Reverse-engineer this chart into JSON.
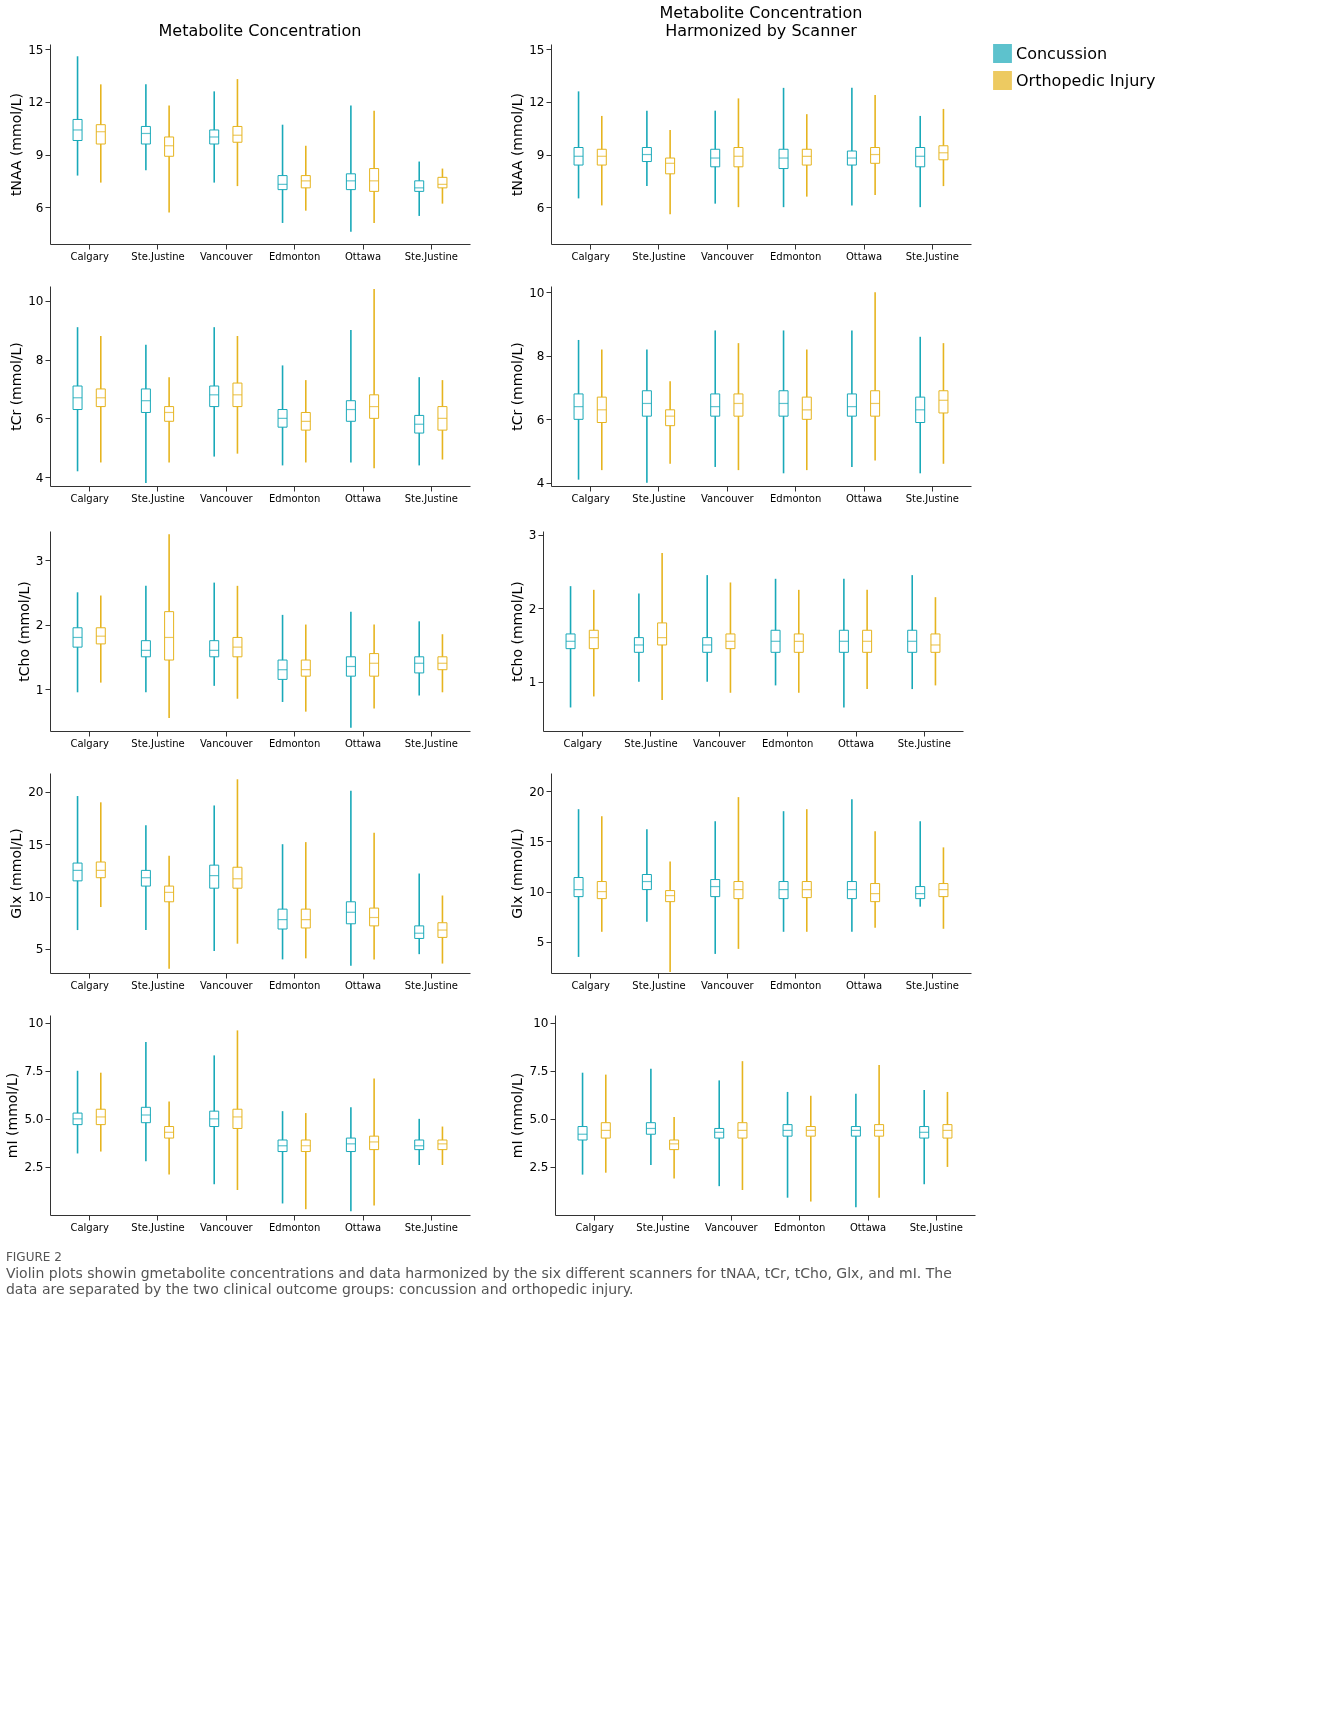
{
  "chart_data": [
    {
      "type": "box",
      "title": "Metabolite Concentration",
      "ylabel": "tNAA (mmol/L)",
      "categories": [
        "Calgary",
        "Ste.Justine",
        "Vancouver",
        "Edmonton",
        "Ottawa",
        "Ste.Justine"
      ],
      "ylim": [
        3.9,
        15.3
      ],
      "yticks": [
        6,
        9,
        12,
        15
      ],
      "legend": "right",
      "series": [
        {
          "name": "Concussion",
          "color": "#19a9b9",
          "boxes": [
            {
              "low": 7.8,
              "q1": 9.8,
              "median": 10.4,
              "q3": 11.0,
              "high": 14.6
            },
            {
              "low": 8.1,
              "q1": 9.6,
              "median": 10.2,
              "q3": 10.6,
              "high": 13.0
            },
            {
              "low": 7.4,
              "q1": 9.6,
              "median": 10.0,
              "q3": 10.4,
              "high": 12.6
            },
            {
              "low": 5.1,
              "q1": 7.0,
              "median": 7.3,
              "q3": 7.8,
              "high": 10.7
            },
            {
              "low": 4.6,
              "q1": 7.0,
              "median": 7.5,
              "q3": 7.9,
              "high": 11.8
            },
            {
              "low": 5.5,
              "q1": 6.9,
              "median": 7.1,
              "q3": 7.5,
              "high": 8.6
            }
          ]
        },
        {
          "name": "Orthopedic Injury",
          "color": "#e6b41f",
          "boxes": [
            {
              "low": 7.4,
              "q1": 9.6,
              "median": 10.3,
              "q3": 10.7,
              "high": 13.0
            },
            {
              "low": 5.7,
              "q1": 8.9,
              "median": 9.5,
              "q3": 10.0,
              "high": 11.8
            },
            {
              "low": 7.2,
              "q1": 9.7,
              "median": 10.1,
              "q3": 10.6,
              "high": 13.3
            },
            {
              "low": 5.8,
              "q1": 7.1,
              "median": 7.5,
              "q3": 7.8,
              "high": 9.5
            },
            {
              "low": 5.1,
              "q1": 6.9,
              "median": 7.5,
              "q3": 8.2,
              "high": 11.5
            },
            {
              "low": 6.2,
              "q1": 7.1,
              "median": 7.3,
              "q3": 7.7,
              "high": 8.2
            }
          ]
        }
      ]
    },
    {
      "type": "box",
      "title": "Metabolite Concentration\nHarmonized by Scanner",
      "ylabel": "tNAA (mmol/L)",
      "categories": [
        "Calgary",
        "Ste.Justine",
        "Vancouver",
        "Edmonton",
        "Ottawa",
        "Ste.Justine"
      ],
      "ylim": [
        3.9,
        15.3
      ],
      "yticks": [
        6,
        9,
        12,
        15
      ],
      "legend": "right",
      "series": [
        {
          "name": "Concussion",
          "color": "#19a9b9",
          "boxes": [
            {
              "low": 6.5,
              "q1": 8.4,
              "median": 8.9,
              "q3": 9.4,
              "high": 12.6
            },
            {
              "low": 7.2,
              "q1": 8.6,
              "median": 9.0,
              "q3": 9.4,
              "high": 11.5
            },
            {
              "low": 6.2,
              "q1": 8.3,
              "median": 8.8,
              "q3": 9.3,
              "high": 11.5
            },
            {
              "low": 6.0,
              "q1": 8.2,
              "median": 8.8,
              "q3": 9.3,
              "high": 12.8
            },
            {
              "low": 6.1,
              "q1": 8.4,
              "median": 8.8,
              "q3": 9.2,
              "high": 12.8
            },
            {
              "low": 6.0,
              "q1": 8.3,
              "median": 8.9,
              "q3": 9.4,
              "high": 11.2
            }
          ]
        },
        {
          "name": "Orthopedic Injury",
          "color": "#e6b41f",
          "boxes": [
            {
              "low": 6.1,
              "q1": 8.4,
              "median": 8.9,
              "q3": 9.3,
              "high": 11.2
            },
            {
              "low": 5.6,
              "q1": 7.9,
              "median": 8.5,
              "q3": 8.8,
              "high": 10.4
            },
            {
              "low": 6.0,
              "q1": 8.3,
              "median": 8.9,
              "q3": 9.4,
              "high": 12.2
            },
            {
              "low": 6.6,
              "q1": 8.4,
              "median": 8.9,
              "q3": 9.3,
              "high": 11.3
            },
            {
              "low": 6.7,
              "q1": 8.5,
              "median": 9.0,
              "q3": 9.4,
              "high": 12.4
            },
            {
              "low": 7.2,
              "q1": 8.7,
              "median": 9.1,
              "q3": 9.5,
              "high": 11.6
            }
          ]
        }
      ]
    },
    {
      "type": "box",
      "ylabel": "tCr (mmol/L)",
      "categories": [
        "Calgary",
        "Ste.Justine",
        "Vancouver",
        "Edmonton",
        "Ottawa",
        "Ste.Justine"
      ],
      "ylim": [
        3.7,
        10.5
      ],
      "yticks": [
        4,
        6,
        8,
        10
      ],
      "legend": "right",
      "series": [
        {
          "name": "Concussion",
          "color": "#19a9b9",
          "boxes": [
            {
              "low": 4.2,
              "q1": 6.3,
              "median": 6.7,
              "q3": 7.1,
              "high": 9.1
            },
            {
              "low": 3.8,
              "q1": 6.2,
              "median": 6.6,
              "q3": 7.0,
              "high": 8.5
            },
            {
              "low": 4.7,
              "q1": 6.4,
              "median": 6.8,
              "q3": 7.1,
              "high": 9.1
            },
            {
              "low": 4.4,
              "q1": 5.7,
              "median": 6.0,
              "q3": 6.3,
              "high": 7.8
            },
            {
              "low": 4.5,
              "q1": 5.9,
              "median": 6.3,
              "q3": 6.6,
              "high": 9.0
            },
            {
              "low": 4.4,
              "q1": 5.5,
              "median": 5.8,
              "q3": 6.1,
              "high": 7.4
            }
          ]
        },
        {
          "name": "Orthopedic Injury",
          "color": "#e6b41f",
          "boxes": [
            {
              "low": 4.5,
              "q1": 6.4,
              "median": 6.7,
              "q3": 7.0,
              "high": 8.8
            },
            {
              "low": 4.5,
              "q1": 5.9,
              "median": 6.2,
              "q3": 6.4,
              "high": 7.4
            },
            {
              "low": 4.8,
              "q1": 6.4,
              "median": 6.8,
              "q3": 7.2,
              "high": 8.8
            },
            {
              "low": 4.5,
              "q1": 5.6,
              "median": 5.9,
              "q3": 6.2,
              "high": 7.3
            },
            {
              "low": 4.3,
              "q1": 6.0,
              "median": 6.4,
              "q3": 6.8,
              "high": 10.4
            },
            {
              "low": 4.6,
              "q1": 5.6,
              "median": 6.0,
              "q3": 6.4,
              "high": 7.3
            }
          ]
        }
      ]
    },
    {
      "type": "box",
      "ylabel": "tCr (mmol/L)",
      "categories": [
        "Calgary",
        "Ste.Justine",
        "Vancouver",
        "Edmonton",
        "Ottawa",
        "Ste.Justine"
      ],
      "ylim": [
        3.9,
        10.2
      ],
      "yticks": [
        4,
        6,
        8,
        10
      ],
      "legend": "right",
      "series": [
        {
          "name": "Concussion",
          "color": "#19a9b9",
          "boxes": [
            {
              "low": 4.1,
              "q1": 6.0,
              "median": 6.4,
              "q3": 6.8,
              "high": 8.5
            },
            {
              "low": 4.0,
              "q1": 6.1,
              "median": 6.5,
              "q3": 6.9,
              "high": 8.2
            },
            {
              "low": 4.5,
              "q1": 6.1,
              "median": 6.4,
              "q3": 6.8,
              "high": 8.8
            },
            {
              "low": 4.3,
              "q1": 6.1,
              "median": 6.5,
              "q3": 6.9,
              "high": 8.8
            },
            {
              "low": 4.5,
              "q1": 6.1,
              "median": 6.4,
              "q3": 6.8,
              "high": 8.8
            },
            {
              "low": 4.3,
              "q1": 5.9,
              "median": 6.3,
              "q3": 6.7,
              "high": 8.6
            }
          ]
        },
        {
          "name": "Orthopedic Injury",
          "color": "#e6b41f",
          "boxes": [
            {
              "low": 4.4,
              "q1": 5.9,
              "median": 6.3,
              "q3": 6.7,
              "high": 8.2
            },
            {
              "low": 4.6,
              "q1": 5.8,
              "median": 6.1,
              "q3": 6.3,
              "high": 7.2
            },
            {
              "low": 4.4,
              "q1": 6.1,
              "median": 6.5,
              "q3": 6.8,
              "high": 8.4
            },
            {
              "low": 4.4,
              "q1": 6.0,
              "median": 6.3,
              "q3": 6.7,
              "high": 8.2
            },
            {
              "low": 4.7,
              "q1": 6.1,
              "median": 6.5,
              "q3": 6.9,
              "high": 10.0
            },
            {
              "low": 4.6,
              "q1": 6.2,
              "median": 6.6,
              "q3": 6.9,
              "high": 8.4
            }
          ]
        }
      ]
    },
    {
      "type": "box",
      "ylabel": "tCho (mmol/L)",
      "categories": [
        "Calgary",
        "Ste.Justine",
        "Vancouver",
        "Edmonton",
        "Ottawa",
        "Ste.Justine"
      ],
      "ylim": [
        0.35,
        3.45
      ],
      "yticks": [
        1,
        2,
        3
      ],
      "legend": "right",
      "series": [
        {
          "name": "Concussion",
          "color": "#19a9b9",
          "boxes": [
            {
              "low": 0.95,
              "q1": 1.65,
              "median": 1.8,
              "q3": 1.95,
              "high": 2.5
            },
            {
              "low": 0.95,
              "q1": 1.5,
              "median": 1.6,
              "q3": 1.75,
              "high": 2.6
            },
            {
              "low": 1.05,
              "q1": 1.5,
              "median": 1.6,
              "q3": 1.75,
              "high": 2.65
            },
            {
              "low": 0.8,
              "q1": 1.15,
              "median": 1.3,
              "q3": 1.45,
              "high": 2.15
            },
            {
              "low": 0.4,
              "q1": 1.2,
              "median": 1.35,
              "q3": 1.5,
              "high": 2.2
            },
            {
              "low": 0.9,
              "q1": 1.25,
              "median": 1.4,
              "q3": 1.5,
              "high": 2.05
            }
          ]
        },
        {
          "name": "Orthopedic Injury",
          "color": "#e6b41f",
          "boxes": [
            {
              "low": 1.1,
              "q1": 1.7,
              "median": 1.82,
              "q3": 1.95,
              "high": 2.45
            },
            {
              "low": 0.55,
              "q1": 1.45,
              "median": 1.8,
              "q3": 2.2,
              "high": 3.4
            },
            {
              "low": 0.85,
              "q1": 1.5,
              "median": 1.65,
              "q3": 1.8,
              "high": 2.6
            },
            {
              "low": 0.65,
              "q1": 1.2,
              "median": 1.3,
              "q3": 1.45,
              "high": 2.0
            },
            {
              "low": 0.7,
              "q1": 1.2,
              "median": 1.4,
              "q3": 1.55,
              "high": 2.0
            },
            {
              "low": 0.95,
              "q1": 1.3,
              "median": 1.4,
              "q3": 1.5,
              "high": 1.85
            }
          ]
        }
      ]
    },
    {
      "type": "box",
      "ylabel": "tCho (mmol/L)",
      "categories": [
        "Calgary",
        "Ste.Justine",
        "Vancouver",
        "Edmonton",
        "Ottawa",
        "Ste.Justine"
      ],
      "ylim": [
        0.33,
        3.05
      ],
      "yticks": [
        1,
        2,
        3
      ],
      "legend": "right",
      "series": [
        {
          "name": "Concussion",
          "color": "#19a9b9",
          "boxes": [
            {
              "low": 0.65,
              "q1": 1.45,
              "median": 1.55,
              "q3": 1.65,
              "high": 2.3
            },
            {
              "low": 1.0,
              "q1": 1.4,
              "median": 1.5,
              "q3": 1.6,
              "high": 2.2
            },
            {
              "low": 1.0,
              "q1": 1.4,
              "median": 1.5,
              "q3": 1.6,
              "high": 2.45
            },
            {
              "low": 0.95,
              "q1": 1.4,
              "median": 1.55,
              "q3": 1.7,
              "high": 2.4
            },
            {
              "low": 0.65,
              "q1": 1.4,
              "median": 1.55,
              "q3": 1.7,
              "high": 2.4
            },
            {
              "low": 0.9,
              "q1": 1.4,
              "median": 1.55,
              "q3": 1.7,
              "high": 2.45
            }
          ]
        },
        {
          "name": "Orthopedic Injury",
          "color": "#e6b41f",
          "boxes": [
            {
              "low": 0.8,
              "q1": 1.45,
              "median": 1.6,
              "q3": 1.7,
              "high": 2.25
            },
            {
              "low": 0.75,
              "q1": 1.5,
              "median": 1.6,
              "q3": 1.8,
              "high": 2.75
            },
            {
              "low": 0.85,
              "q1": 1.45,
              "median": 1.55,
              "q3": 1.65,
              "high": 2.35
            },
            {
              "low": 0.85,
              "q1": 1.4,
              "median": 1.55,
              "q3": 1.65,
              "high": 2.25
            },
            {
              "low": 0.9,
              "q1": 1.4,
              "median": 1.55,
              "q3": 1.7,
              "high": 2.25
            },
            {
              "low": 0.95,
              "q1": 1.4,
              "median": 1.5,
              "q3": 1.65,
              "high": 2.15
            }
          ]
        }
      ]
    },
    {
      "type": "box",
      "ylabel": "Glx (mmol/L)",
      "categories": [
        "Calgary",
        "Ste.Justine",
        "Vancouver",
        "Edmonton",
        "Ottawa",
        "Ste.Justine"
      ],
      "ylim": [
        2.7,
        21.8
      ],
      "yticks": [
        5,
        10,
        15,
        20
      ],
      "legend": "right",
      "series": [
        {
          "name": "Concussion",
          "color": "#19a9b9",
          "boxes": [
            {
              "low": 6.8,
              "q1": 11.5,
              "median": 12.5,
              "q3": 13.2,
              "high": 19.6
            },
            {
              "low": 6.8,
              "q1": 11.0,
              "median": 11.8,
              "q3": 12.5,
              "high": 16.8
            },
            {
              "low": 4.8,
              "q1": 10.8,
              "median": 12.0,
              "q3": 13.0,
              "high": 18.7
            },
            {
              "low": 4.0,
              "q1": 6.9,
              "median": 7.8,
              "q3": 8.8,
              "high": 15.0
            },
            {
              "low": 3.4,
              "q1": 7.4,
              "median": 8.5,
              "q3": 9.5,
              "high": 20.1
            },
            {
              "low": 4.5,
              "q1": 6.0,
              "median": 6.5,
              "q3": 7.2,
              "high": 12.2
            }
          ]
        },
        {
          "name": "Orthopedic Injury",
          "color": "#e6b41f",
          "boxes": [
            {
              "low": 9.0,
              "q1": 11.8,
              "median": 12.5,
              "q3": 13.3,
              "high": 19.0
            },
            {
              "low": 3.1,
              "q1": 9.5,
              "median": 10.4,
              "q3": 11.0,
              "high": 13.9
            },
            {
              "low": 5.5,
              "q1": 10.8,
              "median": 11.7,
              "q3": 12.8,
              "high": 21.2
            },
            {
              "low": 4.1,
              "q1": 7.0,
              "median": 7.8,
              "q3": 8.8,
              "high": 15.2
            },
            {
              "low": 4.0,
              "q1": 7.2,
              "median": 8.0,
              "q3": 8.9,
              "high": 16.1
            },
            {
              "low": 3.6,
              "q1": 6.1,
              "median": 6.8,
              "q3": 7.5,
              "high": 10.1
            }
          ]
        }
      ]
    },
    {
      "type": "box",
      "ylabel": "Glx (mmol/L)",
      "categories": [
        "Calgary",
        "Ste.Justine",
        "Vancouver",
        "Edmonton",
        "Ottawa",
        "Ste.Justine"
      ],
      "ylim": [
        1.9,
        21.8
      ],
      "yticks": [
        5,
        10,
        15,
        20
      ],
      "legend": "right",
      "series": [
        {
          "name": "Concussion",
          "color": "#19a9b9",
          "boxes": [
            {
              "low": 3.5,
              "q1": 9.5,
              "median": 10.2,
              "q3": 11.4,
              "high": 18.2
            },
            {
              "low": 7.0,
              "q1": 10.2,
              "median": 11.0,
              "q3": 11.7,
              "high": 16.2
            },
            {
              "low": 3.8,
              "q1": 9.5,
              "median": 10.5,
              "q3": 11.2,
              "high": 17.0
            },
            {
              "low": 6.0,
              "q1": 9.3,
              "median": 10.2,
              "q3": 11.0,
              "high": 18.0
            },
            {
              "low": 6.0,
              "q1": 9.3,
              "median": 10.2,
              "q3": 11.0,
              "high": 19.2
            },
            {
              "low": 8.5,
              "q1": 9.3,
              "median": 9.8,
              "q3": 10.5,
              "high": 17.0
            }
          ]
        },
        {
          "name": "Orthopedic Injury",
          "color": "#e6b41f",
          "boxes": [
            {
              "low": 6.0,
              "q1": 9.3,
              "median": 10.0,
              "q3": 11.0,
              "high": 17.5
            },
            {
              "low": 2.0,
              "q1": 9.0,
              "median": 9.6,
              "q3": 10.1,
              "high": 13.0
            },
            {
              "low": 4.3,
              "q1": 9.3,
              "median": 10.2,
              "q3": 11.0,
              "high": 19.4
            },
            {
              "low": 6.0,
              "q1": 9.4,
              "median": 10.2,
              "q3": 11.0,
              "high": 18.2
            },
            {
              "low": 6.4,
              "q1": 9.0,
              "median": 9.8,
              "q3": 10.8,
              "high": 16.0
            },
            {
              "low": 6.3,
              "q1": 9.5,
              "median": 10.2,
              "q3": 10.8,
              "high": 14.4
            }
          ]
        }
      ]
    },
    {
      "type": "box",
      "ylabel": "mI (mmol/L)",
      "categories": [
        "Calgary",
        "Ste.Justine",
        "Vancouver",
        "Edmonton",
        "Ottawa",
        "Ste.Justine"
      ],
      "ylim": [
        0,
        10.4
      ],
      "yticks": [
        {
          "value": 2.5,
          "label": "2.5"
        },
        {
          "value": 5,
          "label": "5.0"
        },
        {
          "value": 7.5,
          "label": "7.5"
        },
        10
      ],
      "legend": "right",
      "series": [
        {
          "name": "Concussion",
          "color": "#19a9b9",
          "boxes": [
            {
              "low": 3.2,
              "q1": 4.7,
              "median": 5.0,
              "q3": 5.3,
              "high": 7.5
            },
            {
              "low": 2.8,
              "q1": 4.8,
              "median": 5.2,
              "q3": 5.6,
              "high": 9.0
            },
            {
              "low": 1.6,
              "q1": 4.6,
              "median": 5.0,
              "q3": 5.4,
              "high": 8.3
            },
            {
              "low": 0.6,
              "q1": 3.3,
              "median": 3.6,
              "q3": 3.9,
              "high": 5.4
            },
            {
              "low": 0.2,
              "q1": 3.3,
              "median": 3.7,
              "q3": 4.0,
              "high": 5.6
            },
            {
              "low": 2.6,
              "q1": 3.4,
              "median": 3.6,
              "q3": 3.9,
              "high": 5.0
            }
          ]
        },
        {
          "name": "Orthopedic Injury",
          "color": "#e6b41f",
          "boxes": [
            {
              "low": 3.3,
              "q1": 4.7,
              "median": 5.1,
              "q3": 5.5,
              "high": 7.4
            },
            {
              "low": 2.1,
              "q1": 4.0,
              "median": 4.3,
              "q3": 4.6,
              "high": 5.9
            },
            {
              "low": 1.3,
              "q1": 4.5,
              "median": 5.1,
              "q3": 5.5,
              "high": 9.6
            },
            {
              "low": 0.3,
              "q1": 3.3,
              "median": 3.6,
              "q3": 3.9,
              "high": 5.3
            },
            {
              "low": 0.5,
              "q1": 3.4,
              "median": 3.8,
              "q3": 4.1,
              "high": 7.1
            },
            {
              "low": 2.6,
              "q1": 3.4,
              "median": 3.7,
              "q3": 3.9,
              "high": 4.6
            }
          ]
        }
      ]
    },
    {
      "type": "box",
      "ylabel": "mI (mmol/L)",
      "categories": [
        "Calgary",
        "Ste.Justine",
        "Vancouver",
        "Edmonton",
        "Ottawa",
        "Ste.Justine"
      ],
      "ylim": [
        0,
        10.4
      ],
      "yticks": [
        {
          "value": 2.5,
          "label": "2.5"
        },
        {
          "value": 5,
          "label": "5.0"
        },
        {
          "value": 7.5,
          "label": "7.5"
        },
        10
      ],
      "legend": "right",
      "annotations": [
        "FIGURE 2",
        "Violin plots showin gmetabolite concentrations and data harmonized by the six different scanners for tNAA, tCr, tCho, Glx, and mI. The data are separated by the two clinical outcome groups: concussion and orthopedic injury."
      ],
      "series": [
        {
          "name": "Concussion",
          "color": "#19a9b9",
          "boxes": [
            {
              "low": 2.1,
              "q1": 3.9,
              "median": 4.2,
              "q3": 4.6,
              "high": 7.4
            },
            {
              "low": 2.6,
              "q1": 4.2,
              "median": 4.5,
              "q3": 4.8,
              "high": 7.6
            },
            {
              "low": 1.5,
              "q1": 4.0,
              "median": 4.3,
              "q3": 4.5,
              "high": 7.0
            },
            {
              "low": 0.9,
              "q1": 4.1,
              "median": 4.4,
              "q3": 4.7,
              "high": 6.4
            },
            {
              "low": 0.4,
              "q1": 4.1,
              "median": 4.4,
              "q3": 4.6,
              "high": 6.3
            },
            {
              "low": 1.6,
              "q1": 4.0,
              "median": 4.3,
              "q3": 4.6,
              "high": 6.5
            }
          ]
        },
        {
          "name": "Orthopedic Injury",
          "color": "#e6b41f",
          "boxes": [
            {
              "low": 2.2,
              "q1": 4.0,
              "median": 4.4,
              "q3": 4.8,
              "high": 7.3
            },
            {
              "low": 1.9,
              "q1": 3.4,
              "median": 3.7,
              "q3": 3.9,
              "high": 5.1
            },
            {
              "low": 1.3,
              "q1": 4.0,
              "median": 4.4,
              "q3": 4.8,
              "high": 8.0
            },
            {
              "low": 0.7,
              "q1": 4.1,
              "median": 4.4,
              "q3": 4.6,
              "high": 6.2
            },
            {
              "low": 0.9,
              "q1": 4.1,
              "median": 4.4,
              "q3": 4.7,
              "high": 7.8
            },
            {
              "low": 2.5,
              "q1": 4.0,
              "median": 4.4,
              "q3": 4.7,
              "high": 6.4
            }
          ]
        }
      ]
    }
  ]
}
